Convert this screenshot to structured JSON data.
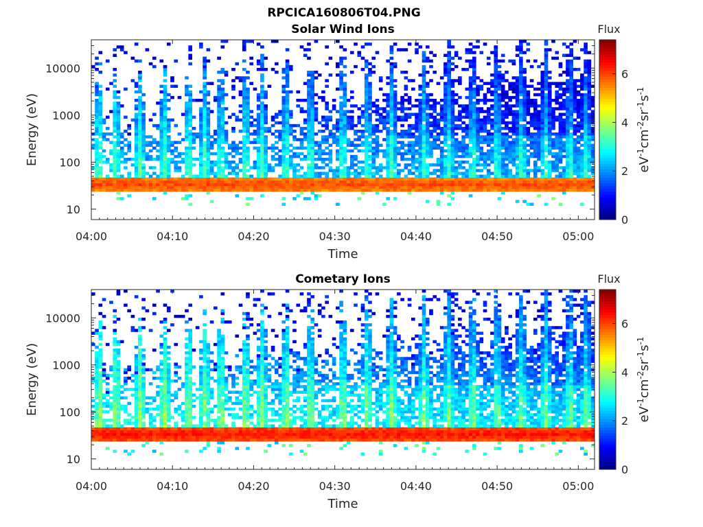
{
  "figure_title": "RPCICA160806T04.PNG",
  "chart_data": [
    {
      "type": "heatmap",
      "title": "Solar Wind Ions",
      "xlabel": "Time",
      "ylabel": "Energy (eV)",
      "x_ticks": [
        "04:00",
        "04:10",
        "04:20",
        "04:30",
        "04:40",
        "04:50",
        "05:00"
      ],
      "x_range": [
        "04:00",
        "05:02"
      ],
      "y_scale": "log",
      "y_ticks": [
        10,
        100,
        1000,
        10000
      ],
      "y_tick_labels": [
        "10",
        "100",
        "1000",
        "10000"
      ],
      "y_range": [
        6,
        40000
      ],
      "colorbar": {
        "title": "Flux",
        "label": "eV-1cm-2sr-1s-1",
        "ticks": [
          0,
          2,
          4,
          6
        ],
        "range": [
          0,
          7.4
        ],
        "colormap": "jet"
      },
      "summary": {
        "dominant_band_eV": [
          25,
          45
        ],
        "dominant_band_flux": 6.2,
        "burst_times": [
          "04:01",
          "04:03",
          "04:06",
          "04:09",
          "04:12",
          "04:14",
          "04:16",
          "04:19",
          "04:21",
          "04:24",
          "04:27",
          "04:31",
          "04:34",
          "04:37",
          "04:41",
          "04:44",
          "04:47",
          "04:50",
          "04:53",
          "04:56",
          "04:59",
          "05:01"
        ]
      }
    },
    {
      "type": "heatmap",
      "title": "Cometary Ions",
      "xlabel": "Time",
      "ylabel": "Energy (eV)",
      "x_ticks": [
        "04:00",
        "04:10",
        "04:20",
        "04:30",
        "04:40",
        "04:50",
        "05:00"
      ],
      "x_range": [
        "04:00",
        "05:02"
      ],
      "y_scale": "log",
      "y_ticks": [
        10,
        100,
        1000,
        10000
      ],
      "y_tick_labels": [
        "10",
        "100",
        "1000",
        "10000"
      ],
      "y_range": [
        6,
        40000
      ],
      "colorbar": {
        "title": "Flux",
        "label": "eV-1cm-2sr-1s-1",
        "ticks": [
          0,
          2,
          4,
          6
        ],
        "range": [
          0,
          7.4
        ],
        "colormap": "jet"
      },
      "summary": {
        "dominant_band_eV": [
          25,
          45
        ],
        "dominant_band_flux": 6.6,
        "burst_times": [
          "04:01",
          "04:03",
          "04:06",
          "04:09",
          "04:12",
          "04:14",
          "04:16",
          "04:19",
          "04:21",
          "04:24",
          "04:27",
          "04:31",
          "04:34",
          "04:37",
          "04:41",
          "04:44",
          "04:47",
          "04:50",
          "04:53",
          "04:56",
          "04:59",
          "05:01"
        ]
      }
    }
  ]
}
